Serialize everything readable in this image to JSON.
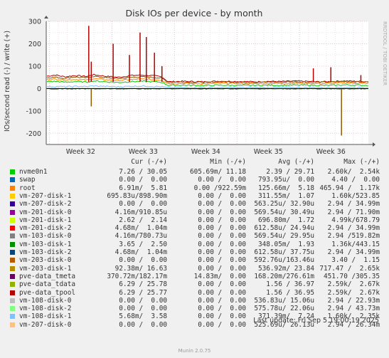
{
  "chart_data": {
    "type": "line",
    "title": "Disk IOs per device - by month",
    "ylabel": "IOs/second read (-) / write (+)",
    "ylim": [
      -250,
      300
    ],
    "yticks": [
      300,
      200,
      100,
      0,
      -100,
      -200
    ],
    "xticks": [
      "Week 32",
      "Week 33",
      "Week 34",
      "Week 35",
      "Week 36"
    ],
    "x_range_weeks": [
      31.45,
      36.6
    ],
    "grid": true,
    "watermark": "RRDTOOL / TOBI OETIKER",
    "series": [
      {
        "name": "root",
        "color": "#ff8000",
        "description_of_shape": "baseline"
      },
      {
        "name": "pve-data_tdata",
        "color": "#806000"
      },
      {
        "name": "pve-data_tpool",
        "color": "#b04000"
      },
      {
        "name": "vm-201-disk-1",
        "color": "#00cc00"
      },
      {
        "name": "vm-108-disk-1",
        "color": "#80c0ff"
      }
    ],
    "write_profile": {
      "x": [
        31.45,
        31.6,
        31.75,
        31.9,
        32.0,
        32.1,
        32.2,
        32.4,
        32.6,
        32.8,
        33.0,
        33.2,
        33.3,
        33.4,
        33.6,
        33.8,
        34.0,
        34.2,
        34.4,
        34.6,
        34.8,
        35.0,
        35.2,
        35.4,
        35.6,
        35.8,
        36.0,
        36.2,
        36.4,
        36.6
      ],
      "tpool": [
        55,
        60,
        52,
        58,
        56,
        54,
        62,
        55,
        50,
        58,
        60,
        56,
        52,
        30,
        32,
        31,
        30,
        33,
        32,
        31,
        30,
        32,
        31,
        33,
        32,
        30,
        31,
        34,
        32,
        31
      ],
      "tdata": [
        48,
        50,
        45,
        52,
        49,
        47,
        55,
        48,
        44,
        50,
        52,
        49,
        46,
        28,
        29,
        28,
        27,
        30,
        29,
        28,
        28,
        29,
        28,
        30,
        29,
        28,
        29,
        31,
        30,
        29
      ],
      "root": [
        40,
        42,
        38,
        41,
        39,
        38,
        44,
        39,
        36,
        40,
        42,
        39,
        37,
        22,
        23,
        22,
        21,
        24,
        23,
        22,
        22,
        23,
        22,
        24,
        23,
        22,
        23,
        25,
        24,
        23
      ],
      "vm201": [
        30,
        32,
        28,
        31,
        30,
        29,
        34,
        30,
        27,
        31,
        32,
        30,
        28,
        14,
        15,
        14,
        13,
        15,
        14,
        14,
        14,
        15,
        14,
        15,
        15,
        14,
        14,
        16,
        15,
        14
      ],
      "vm108": [
        8,
        9,
        8,
        9,
        10,
        8,
        12,
        9,
        8,
        10,
        11,
        9,
        8,
        4,
        4,
        4,
        3,
        4,
        4,
        4,
        4,
        4,
        4,
        5,
        4,
        4,
        4,
        5,
        4,
        4
      ]
    },
    "spikes": [
      {
        "x": 32.13,
        "up": 280,
        "down": 0
      },
      {
        "x": 32.17,
        "up": 120,
        "down": -80
      },
      {
        "x": 32.52,
        "up": 200,
        "down": 0
      },
      {
        "x": 32.78,
        "up": 150,
        "down": 0
      },
      {
        "x": 32.95,
        "up": 250,
        "down": 0
      },
      {
        "x": 33.05,
        "up": 230,
        "down": 0
      },
      {
        "x": 33.18,
        "up": 160,
        "down": 0
      },
      {
        "x": 33.3,
        "up": 100,
        "down": 0
      },
      {
        "x": 35.72,
        "up": 90,
        "down": 0
      },
      {
        "x": 36.0,
        "up": 95,
        "down": 0
      },
      {
        "x": 36.17,
        "up": 0,
        "down": -210
      },
      {
        "x": 36.48,
        "up": 60,
        "down": 0
      }
    ]
  },
  "legend": {
    "headers": {
      "cur": "Cur (-/+)",
      "min": "Min (-/+)",
      "avg": "Avg (-/+)",
      "max": "Max (-/+)"
    },
    "rows": [
      {
        "name": "nvme0n1",
        "color": "#00cc00",
        "cur": "7.26 / 30.05",
        "min": "605.69m/ 11.18",
        "avg": "2.39 / 29.71",
        "max": "2.60k/  2.54k"
      },
      {
        "name": "swap",
        "color": "#0066b3",
        "cur": "0.00 /  0.00",
        "min": "0.00 /  0.00",
        "avg": "793.95u/  0.00",
        "max": "4.40 /  0.00"
      },
      {
        "name": "root",
        "color": "#ff8000",
        "cur": "6.91m/  5.81",
        "min": "0.00 /922.59m",
        "avg": "125.66m/  5.18",
        "max": "465.94 /  1.17k"
      },
      {
        "name": "vm-207-disk-1",
        "color": "#ffcc00",
        "cur": "695.83u/898.90m",
        "min": "0.00 /  0.00",
        "avg": "311.55m/  1.07",
        "max": "1.60k/523.85"
      },
      {
        "name": "vm-207-disk-2",
        "color": "#330099",
        "cur": "0.00 /  0.00",
        "min": "0.00 /  0.00",
        "avg": "563.25u/ 32.90u",
        "max": "2.94 / 34.99m"
      },
      {
        "name": "vm-201-disk-0",
        "color": "#990099",
        "cur": "4.16m/910.85u",
        "min": "0.00 /  0.00",
        "avg": "569.54u/ 30.49u",
        "max": "2.94 / 71.90m"
      },
      {
        "name": "vm-201-disk-1",
        "color": "#ccff00",
        "cur": "2.62 /  2.14",
        "min": "0.00 /  0.00",
        "avg": "696.80m/  1.72",
        "max": "4.99k/678.79"
      },
      {
        "name": "vm-201-disk-2",
        "color": "#ff0000",
        "cur": "4.68m/  1.04m",
        "min": "0.00 /  0.00",
        "avg": "612.58u/ 24.94u",
        "max": "2.94 / 34.99m"
      },
      {
        "name": "vm-103-disk-0",
        "color": "#808080",
        "cur": "4.16m/780.73u",
        "min": "0.00 /  0.00",
        "avg": "569.54u/ 29.95u",
        "max": "2.94 /519.82m"
      },
      {
        "name": "vm-103-disk-1",
        "color": "#008f00",
        "cur": "3.65 /  2.50",
        "min": "0.00 /  0.00",
        "avg": "348.05m/  1.93",
        "max": "1.36k/443.15"
      },
      {
        "name": "vm-103-disk-2",
        "color": "#00487d",
        "cur": "4.68m/  1.04m",
        "min": "0.00 /  0.00",
        "avg": "612.58u/ 37.75u",
        "max": "2.94 / 34.99m"
      },
      {
        "name": "vm-203-disk-0",
        "color": "#b35a00",
        "cur": "0.00 /  0.00",
        "min": "0.00 /  0.00",
        "avg": "592.76u/163.46u",
        "max": "3.40 /  1.15"
      },
      {
        "name": "vm-203-disk-1",
        "color": "#b38f00",
        "cur": "92.38m/ 16.63",
        "min": "0.00 /  0.00",
        "avg": "536.92m/ 23.84",
        "max": "717.47 /  2.65k"
      },
      {
        "name": "pve-data_tmeta",
        "color": "#6b006b",
        "cur": "370.72m/182.17m",
        "min": "14.83m/  0.00",
        "avg": "168.20m/276.61m",
        "max": "451.70 /305.35"
      },
      {
        "name": "pve-data_tdata",
        "color": "#8fb300",
        "cur": "6.29 / 25.78",
        "min": "0.00 /  0.00",
        "avg": "1.56 / 36.97",
        "max": "2.59k/  2.67k"
      },
      {
        "name": "pve-data_tpool",
        "color": "#b30000",
        "cur": "6.29 / 25.77",
        "min": "0.00 /  0.00",
        "avg": "1.56 / 36.95",
        "max": "2.59k/  2.67k"
      },
      {
        "name": "vm-108-disk-0",
        "color": "#bebebe",
        "cur": "0.00 /  0.00",
        "min": "0.00 /  0.00",
        "avg": "536.83u/ 15.06u",
        "max": "2.94 / 22.93m"
      },
      {
        "name": "vm-108-disk-2",
        "color": "#80ff80",
        "cur": "0.00 /  0.00",
        "min": "0.00 /  0.00",
        "avg": "575.78u/ 22.06u",
        "max": "2.94 / 43.73m"
      },
      {
        "name": "vm-108-disk-1",
        "color": "#80c0ff",
        "cur": "5.68m/  3.58",
        "min": "0.00 /  0.00",
        "avg": "371.39m/  7.24",
        "max": "1.60k/  2.35k"
      },
      {
        "name": "vm-207-disk-0",
        "color": "#ffc080",
        "cur": "0.00 /  0.00",
        "min": "0.00 /  0.00",
        "avg": "525.69u/ 26.13u",
        "max": "2.94 / 26.34m"
      }
    ]
  },
  "footer": {
    "last_update": "Last update: Fri Sep  5 19:00:19 2025",
    "generator": "Munin 2.0.75"
  }
}
